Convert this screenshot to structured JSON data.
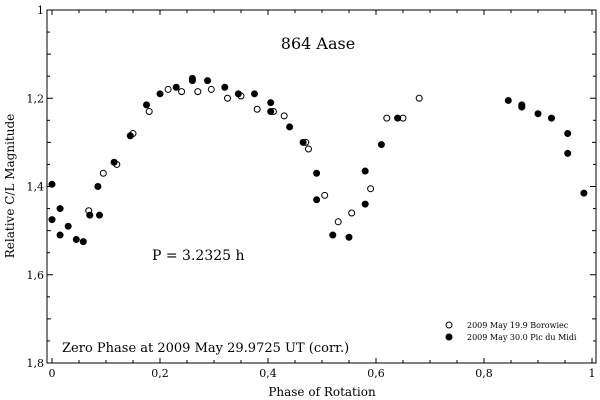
{
  "chart_data": {
    "type": "scatter",
    "title": "864 Aase",
    "xlabel": "Phase of Rotation",
    "ylabel": "Relative C/L Magnitude",
    "xlim": [
      0,
      1
    ],
    "ylim": [
      1.8,
      1.0
    ],
    "y_inverted": true,
    "x_ticks": [
      0,
      0.2,
      0.4,
      0.6,
      0.8,
      1
    ],
    "x_tick_labels": [
      "0",
      "0,2",
      "0,4",
      "0,6",
      "0,8",
      "1"
    ],
    "y_ticks": [
      1.0,
      1.2,
      1.4,
      1.6,
      1.8
    ],
    "y_tick_labels": [
      "1",
      "1,2",
      "1,4",
      "1,6",
      "1,8"
    ],
    "grid": false,
    "legend_position": "bottom-right",
    "annotations": [
      "P = 3.2325 h",
      "Zero Phase at 2009 May 29.9725 UT (corr.)"
    ],
    "series": [
      {
        "name": "2009 May 19.9  Borowiec",
        "marker": "open-circle",
        "color": "#000000",
        "x": [
          0.068,
          0.095,
          0.12,
          0.15,
          0.18,
          0.215,
          0.24,
          0.27,
          0.295,
          0.325,
          0.35,
          0.38,
          0.41,
          0.43,
          0.47,
          0.475,
          0.505,
          0.53,
          0.555,
          0.59,
          0.62,
          0.65,
          0.68
        ],
        "y": [
          1.455,
          1.37,
          1.35,
          1.28,
          1.23,
          1.18,
          1.185,
          1.185,
          1.18,
          1.2,
          1.195,
          1.225,
          1.23,
          1.24,
          1.3,
          1.315,
          1.42,
          1.48,
          1.46,
          1.405,
          1.245,
          1.245,
          1.2
        ]
      },
      {
        "name": "2009 May 30.0 Pic du Midi",
        "marker": "filled-circle",
        "color": "#000000",
        "x": [
          0.0,
          0.0,
          0.015,
          0.015,
          0.03,
          0.045,
          0.058,
          0.07,
          0.085,
          0.088,
          0.115,
          0.145,
          0.175,
          0.2,
          0.23,
          0.26,
          0.26,
          0.288,
          0.32,
          0.345,
          0.375,
          0.405,
          0.405,
          0.44,
          0.465,
          0.49,
          0.49,
          0.52,
          0.55,
          0.58,
          0.58,
          0.61,
          0.64,
          0.845,
          0.87,
          0.87,
          0.9,
          0.925,
          0.955,
          0.955,
          0.985
        ],
        "y": [
          1.395,
          1.475,
          1.45,
          1.51,
          1.49,
          1.52,
          1.525,
          1.465,
          1.4,
          1.465,
          1.345,
          1.285,
          1.215,
          1.19,
          1.175,
          1.155,
          1.16,
          1.16,
          1.175,
          1.19,
          1.19,
          1.21,
          1.23,
          1.265,
          1.3,
          1.37,
          1.43,
          1.51,
          1.515,
          1.365,
          1.44,
          1.305,
          1.245,
          1.205,
          1.215,
          1.22,
          1.235,
          1.245,
          1.28,
          1.325,
          1.415
        ]
      }
    ]
  }
}
